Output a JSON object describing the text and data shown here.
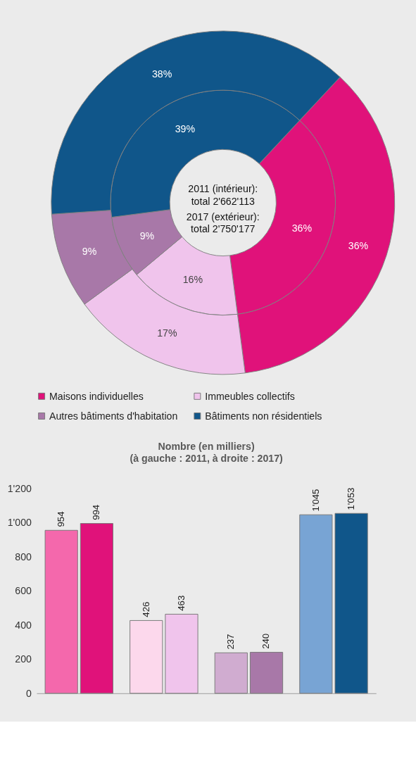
{
  "chart_data": [
    {
      "type": "donut",
      "categories": [
        "Maisons individuelles",
        "Immeubles collectifs",
        "Autres bâtiments d'habitation",
        "Bâtiments non résidentiels"
      ],
      "colors": [
        "#e0127a",
        "#f0c4ec",
        "#a878a8",
        "#10568a"
      ],
      "series": [
        {
          "values": [
            36,
            16,
            9,
            39
          ],
          "value_labels": [
            "36%",
            "16%",
            "9%",
            "39%"
          ]
        },
        {
          "values": [
            36,
            17,
            9,
            38
          ],
          "value_labels": [
            "36%",
            "17%",
            "9%",
            "38%"
          ]
        }
      ],
      "annotations": [
        "2011 (intérieur):\ntotal 2'662'113",
        "2017 (extérieur):\ntotal 2'750'177"
      ],
      "legend": "bottom"
    },
    {
      "type": "bar",
      "title": "Nombre (en milliers)",
      "subtitle": "(à gauche : 2011, à droite : 2017)",
      "categories": [
        null,
        null,
        null,
        null
      ],
      "series": [
        {
          "colors": [
            "#f468ac",
            "#fcd8ec",
            "#d0acd0",
            "#78a4d4"
          ],
          "values": [
            954,
            426,
            237,
            1045
          ],
          "value_labels": [
            "954",
            "426",
            "237",
            "1'045"
          ]
        },
        {
          "colors": [
            "#e0127a",
            "#f0c4ec",
            "#a878a8",
            "#10568a"
          ],
          "values": [
            994,
            463,
            240,
            1053
          ],
          "value_labels": [
            "994",
            "463",
            "240",
            "1'053"
          ]
        }
      ],
      "ylim": [
        0,
        1200
      ],
      "yticks": [
        0,
        200,
        400,
        600,
        800,
        {
          "value": 1000,
          "label": "1'000"
        },
        {
          "value": 1200,
          "label": "1'200"
        }
      ],
      "grid": false,
      "legend": false
    }
  ]
}
